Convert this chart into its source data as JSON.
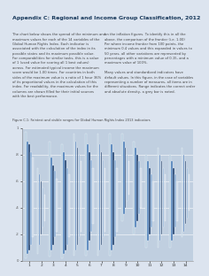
{
  "title": "Appendix C: Regional and Income Group Classification, 2012",
  "subtitle_line": "Figure C.1: Faintest and visible ranges for Global Human Rights Index 2013 indicators",
  "background_color": "#dce4ef",
  "chart_bg": "#c0cfe0",
  "n_groups": 14,
  "x_labels": [
    "1",
    "2",
    "3",
    "4",
    "5",
    "6",
    "7",
    "8",
    "9",
    "10",
    "11",
    "12",
    "13",
    "14"
  ],
  "ylim": [
    0,
    1
  ],
  "yticks": [
    0.0,
    0.2,
    0.4,
    0.6,
    0.8,
    1.0
  ],
  "ytick_labels": [
    "0",
    ".2",
    ".4",
    ".6",
    ".8",
    "1"
  ],
  "colors": [
    "#b8cfe0",
    "#4a7db8",
    "#1e3f6e",
    "#8aadd4",
    "#d0dcea"
  ],
  "group_data": [
    [
      [
        0.02,
        0.97
      ],
      [
        0.05,
        0.9
      ],
      [
        0.08,
        0.88
      ],
      [
        0.12,
        0.82
      ],
      [
        0.18,
        0.78
      ]
    ],
    [
      [
        0.05,
        0.7
      ],
      [
        0.12,
        0.65
      ],
      [
        0.2,
        0.6
      ],
      [
        0.25,
        0.55
      ],
      [
        0.3,
        0.5
      ]
    ],
    [
      [
        0.03,
        0.9
      ],
      [
        0.08,
        0.78
      ],
      [
        0.12,
        0.72
      ],
      [
        0.18,
        0.68
      ],
      [
        0.22,
        0.62
      ]
    ],
    [
      [
        0.02,
        0.88
      ],
      [
        0.05,
        0.82
      ],
      [
        0.08,
        0.76
      ],
      [
        0.12,
        0.7
      ],
      [
        0.18,
        0.65
      ]
    ],
    [
      [
        0.04,
        0.96
      ],
      [
        0.08,
        0.9
      ],
      [
        0.12,
        0.85
      ],
      [
        0.18,
        0.8
      ],
      [
        0.22,
        0.75
      ]
    ],
    [
      [
        0.04,
        0.96
      ],
      [
        0.08,
        0.88
      ],
      [
        0.15,
        0.82
      ],
      [
        0.22,
        0.76
      ],
      [
        0.28,
        0.7
      ]
    ],
    [
      [
        0.04,
        0.96
      ],
      [
        0.08,
        0.88
      ],
      [
        0.12,
        0.82
      ],
      [
        0.18,
        0.76
      ],
      [
        0.22,
        0.7
      ]
    ],
    [
      [
        0.04,
        0.96
      ],
      [
        0.08,
        0.88
      ],
      [
        0.12,
        0.82
      ],
      [
        0.18,
        0.76
      ],
      [
        0.22,
        0.7
      ]
    ],
    [
      [
        0.3,
        0.96
      ],
      [
        0.35,
        0.9
      ],
      [
        0.4,
        0.85
      ],
      [
        0.45,
        0.8
      ],
      [
        0.5,
        0.75
      ]
    ],
    [
      [
        0.2,
        0.9
      ],
      [
        0.25,
        0.85
      ],
      [
        0.3,
        0.8
      ],
      [
        0.35,
        0.75
      ],
      [
        0.4,
        0.7
      ]
    ],
    [
      [
        0.1,
        0.8
      ],
      [
        0.15,
        0.75
      ],
      [
        0.2,
        0.7
      ],
      [
        0.25,
        0.65
      ],
      [
        0.3,
        0.6
      ]
    ],
    [
      [
        0.1,
        0.85
      ],
      [
        0.15,
        0.8
      ],
      [
        0.2,
        0.75
      ],
      [
        0.25,
        0.7
      ],
      [
        0.3,
        0.65
      ]
    ],
    [
      [
        0.1,
        0.8
      ],
      [
        0.15,
        0.75
      ],
      [
        0.2,
        0.7
      ],
      [
        0.25,
        0.65
      ],
      [
        0.3,
        0.6
      ]
    ],
    [
      [
        0.18,
        0.85
      ],
      [
        0.22,
        0.8
      ],
      [
        0.28,
        0.75
      ],
      [
        0.32,
        0.7
      ],
      [
        0.38,
        0.65
      ]
    ]
  ]
}
